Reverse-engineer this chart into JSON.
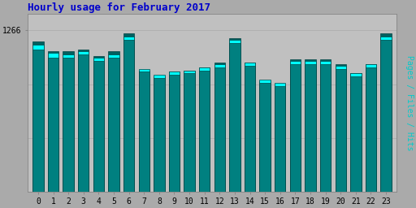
{
  "title": "Hourly usage for February 2017",
  "title_color": "#0000cc",
  "title_fontsize": 9,
  "ylabel_right": "Pages / Files / Hits",
  "background_color": "#aaaaaa",
  "plot_bg_color": "#c0c0c0",
  "hours": [
    0,
    1,
    2,
    3,
    4,
    5,
    6,
    7,
    8,
    9,
    10,
    11,
    12,
    13,
    14,
    15,
    16,
    17,
    18,
    19,
    20,
    21,
    22,
    23
  ],
  "hits": [
    93,
    87,
    87,
    88,
    84,
    87,
    98,
    75,
    71,
    74,
    75,
    77,
    80,
    95,
    80,
    68,
    66,
    82,
    82,
    82,
    79,
    73,
    79,
    98
  ],
  "files": [
    91,
    86,
    85,
    87,
    83,
    85,
    96,
    76,
    72,
    74,
    75,
    77,
    79,
    94,
    80,
    69,
    67,
    81,
    81,
    81,
    78,
    73,
    79,
    96
  ],
  "pages": [
    88,
    83,
    83,
    85,
    81,
    83,
    94,
    74,
    70,
    72,
    73,
    75,
    77,
    92,
    78,
    67,
    65,
    79,
    79,
    79,
    76,
    71,
    77,
    94
  ],
  "bar_width": 0.72,
  "hits_color": "#006060",
  "files_color": "#00ffff",
  "pages_color": "#008080",
  "ymin": 0,
  "ymax": 110,
  "ytick_val": 100,
  "ytick_label": "1266",
  "grid_color": "#aaaaaa",
  "ylabel_color": "#00cccc",
  "xtick_fontsize": 7,
  "ytick_fontsize": 7
}
